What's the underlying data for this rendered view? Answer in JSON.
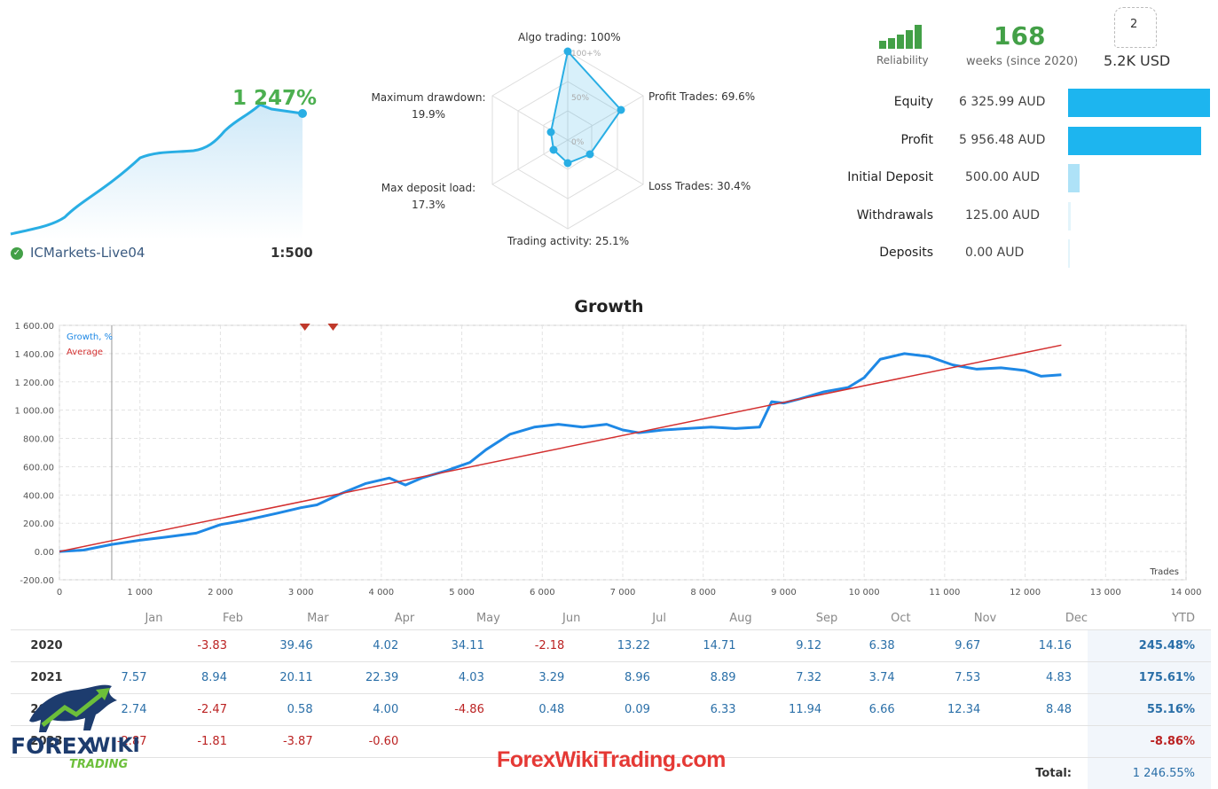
{
  "mini_chart": {
    "growth": "1 247%",
    "account": "ICMarkets-Live04",
    "leverage": "1:500",
    "color": "#29aee4"
  },
  "radar": {
    "algo": "Algo trading: 100%",
    "profit_trades": "Profit Trades: 69.6%",
    "loss_trades": "Loss Trades: 30.4%",
    "activity": "Trading activity: 25.1%",
    "deposit_load_1": "Max deposit load:",
    "deposit_load_2": "17.3%",
    "drawdown_1": "Maximum drawdown:",
    "drawdown_2": "19.9%",
    "ring_100": "100+%",
    "ring_50": "50%",
    "ring_0": "0%",
    "values": {
      "algo": 100,
      "profit_trades": 69.6,
      "loss_trades": 30.4,
      "activity": 25.1,
      "deposit_load": 17.3,
      "drawdown": 19.9
    }
  },
  "stats": {
    "reliability_label": "Reliability",
    "weeks": "168",
    "weeks_label": "weeks (since 2020)",
    "subscribers_count": "2",
    "subscription": "5.2K USD"
  },
  "balance": [
    {
      "label": "Equity",
      "value": "6 325.99 AUD",
      "fraction": 1.0
    },
    {
      "label": "Profit",
      "value": "5 956.48 AUD",
      "fraction": 0.94
    },
    {
      "label": "Initial Deposit",
      "value": "500.00 AUD",
      "fraction": 0.08
    },
    {
      "label": "Withdrawals",
      "value": "125.00 AUD",
      "fraction": 0.02
    },
    {
      "label": "Deposits",
      "value": "0.00 AUD",
      "fraction": 0.0
    }
  ],
  "chart_data": {
    "type": "line",
    "title": "Growth",
    "xlabel": "Trades",
    "ylabel": "",
    "xlim": [
      0,
      14000
    ],
    "ylim": [
      -200,
      1600
    ],
    "x_ticks": [
      "0",
      "1 000",
      "2 000",
      "3 000",
      "4 000",
      "5 000",
      "6 000",
      "7 000",
      "8 000",
      "9 000",
      "10 000",
      "11 000",
      "12 000",
      "13 000",
      "14 000"
    ],
    "y_ticks": [
      "1 600.00",
      "1 400.00",
      "1 200.00",
      "1 000.00",
      "800.00",
      "600.00",
      "400.00",
      "200.00",
      "0.00",
      "-200.00"
    ],
    "grid": true,
    "legend": "top-left",
    "series": [
      {
        "name": "Growth, %",
        "color": "#1e88e5",
        "x": [
          0,
          300,
          650,
          1000,
          1300,
          1700,
          2000,
          2300,
          2700,
          3000,
          3200,
          3500,
          3800,
          4100,
          4300,
          4500,
          4800,
          5100,
          5300,
          5600,
          5900,
          6200,
          6500,
          6800,
          7000,
          7200,
          7500,
          7800,
          8100,
          8400,
          8700,
          8850,
          9000,
          9200,
          9500,
          9800,
          10000,
          10200,
          10500,
          10800,
          11100,
          11400,
          11700,
          12000,
          12200,
          12450
        ],
        "y": [
          0,
          10,
          50,
          80,
          100,
          130,
          190,
          220,
          270,
          310,
          330,
          410,
          480,
          520,
          470,
          520,
          570,
          630,
          720,
          830,
          880,
          900,
          880,
          900,
          860,
          840,
          860,
          870,
          880,
          870,
          880,
          1060,
          1050,
          1080,
          1130,
          1160,
          1230,
          1360,
          1400,
          1380,
          1320,
          1290,
          1300,
          1280,
          1240,
          1250
        ]
      },
      {
        "name": "Average",
        "color": "#d32f2f",
        "x": [
          0,
          12450
        ],
        "y": [
          0,
          1460
        ]
      }
    ],
    "markers": {
      "color": "#c0392b",
      "x": [
        3050,
        3400
      ]
    }
  },
  "monthly": {
    "headers": [
      "",
      "Jan",
      "Feb",
      "Mar",
      "Apr",
      "May",
      "Jun",
      "Jul",
      "Aug",
      "Sep",
      "Oct",
      "Nov",
      "Dec",
      "YTD"
    ],
    "rows": [
      {
        "year": "2020",
        "values": [
          "",
          "-3.83",
          "39.46",
          "4.02",
          "34.11",
          "-2.18",
          "13.22",
          "14.71",
          "9.12",
          "6.38",
          "9.67",
          "14.16"
        ],
        "ytd": "245.48%"
      },
      {
        "year": "2021",
        "values": [
          "7.57",
          "8.94",
          "20.11",
          "22.39",
          "4.03",
          "3.29",
          "8.96",
          "8.89",
          "7.32",
          "3.74",
          "7.53",
          "4.83"
        ],
        "ytd": "175.61%"
      },
      {
        "year": "2022",
        "values": [
          "2.74",
          "-2.47",
          "0.58",
          "4.00",
          "-4.86",
          "0.48",
          "0.09",
          "6.33",
          "11.94",
          "6.66",
          "12.34",
          "8.48"
        ],
        "ytd": "55.16%"
      },
      {
        "year": "2023",
        "values": [
          "-2.87",
          "-1.81",
          "-3.87",
          "-0.60",
          "",
          "",
          "",
          "",
          "",
          "",
          "",
          ""
        ],
        "ytd": "-8.86%"
      }
    ],
    "total_label": "Total:",
    "total": "1 246.55%"
  },
  "watermark": {
    "site": "ForexWikiTrading.com",
    "logo_line1": "FOREX",
    "logo_line2": "WIKI",
    "logo_line3": "TRADING"
  }
}
